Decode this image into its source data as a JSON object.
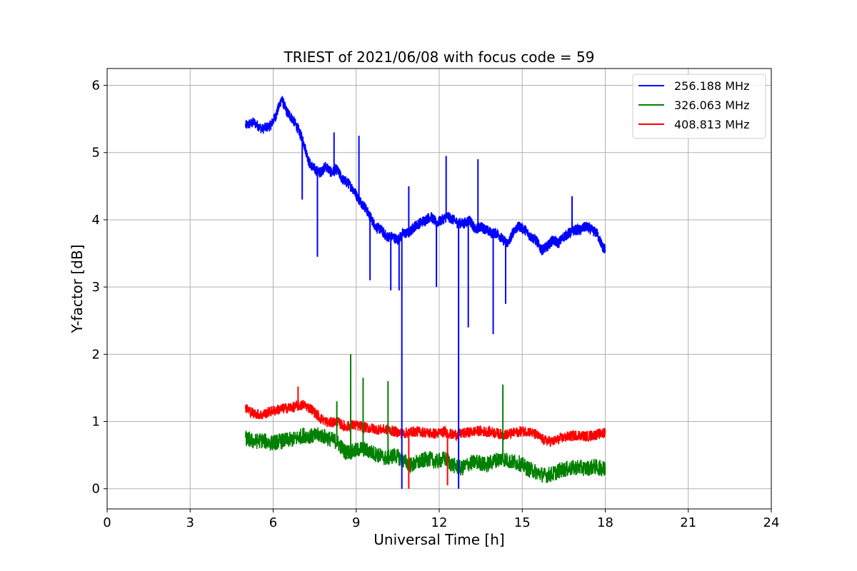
{
  "chart_data": {
    "type": "line",
    "title": "TRIEST of 2021/06/08 with focus code = 59",
    "xlabel": "Universal Time [h]",
    "ylabel": "Y-factor [dB]",
    "xlim": [
      0,
      24
    ],
    "ylim": [
      -0.3,
      6.25
    ],
    "xticks": [
      0,
      3,
      6,
      9,
      12,
      15,
      18,
      21,
      24
    ],
    "yticks": [
      0,
      1,
      2,
      3,
      4,
      5,
      6
    ],
    "grid": true,
    "legend_position": "top-right",
    "series": [
      {
        "name": "256.188 MHz",
        "color": "#0000ff",
        "x": [
          5.0,
          5.3,
          5.6,
          5.9,
          6.1,
          6.3,
          6.5,
          6.7,
          6.9,
          7.1,
          7.3,
          7.5,
          7.7,
          7.9,
          8.1,
          8.3,
          8.5,
          8.7,
          8.9,
          9.1,
          9.3,
          9.5,
          9.7,
          9.9,
          10.1,
          10.3,
          10.5,
          10.7,
          10.9,
          11.1,
          11.3,
          11.5,
          11.7,
          11.9,
          12.1,
          12.3,
          12.5,
          12.7,
          12.9,
          13.1,
          13.3,
          13.5,
          13.7,
          13.9,
          14.1,
          14.3,
          14.5,
          14.7,
          14.9,
          15.1,
          15.3,
          15.5,
          15.7,
          15.9,
          16.1,
          16.3,
          16.5,
          16.7,
          16.9,
          17.1,
          17.3,
          17.5,
          17.7,
          17.9,
          18.0
        ],
        "y": [
          5.4,
          5.45,
          5.35,
          5.4,
          5.55,
          5.8,
          5.6,
          5.5,
          5.35,
          5.15,
          4.85,
          4.75,
          4.7,
          4.8,
          4.7,
          4.75,
          4.6,
          4.55,
          4.45,
          4.3,
          4.2,
          4.05,
          3.9,
          3.85,
          3.75,
          3.75,
          3.7,
          3.8,
          3.8,
          3.9,
          3.95,
          4.0,
          4.05,
          3.95,
          4.0,
          4.05,
          4.0,
          3.95,
          3.95,
          4.0,
          3.85,
          3.9,
          3.85,
          3.8,
          3.8,
          3.7,
          3.65,
          3.85,
          3.9,
          3.85,
          3.75,
          3.7,
          3.55,
          3.6,
          3.7,
          3.65,
          3.75,
          3.8,
          3.85,
          3.85,
          3.9,
          3.85,
          3.8,
          3.6,
          3.55
        ]
      },
      {
        "name": "326.063 MHz",
        "color": "#008000",
        "x": [
          5.0,
          5.3,
          5.6,
          5.9,
          6.2,
          6.5,
          6.8,
          7.1,
          7.4,
          7.7,
          8.0,
          8.3,
          8.6,
          8.9,
          9.2,
          9.5,
          9.8,
          10.1,
          10.4,
          10.7,
          11.0,
          11.3,
          11.6,
          11.9,
          12.2,
          12.5,
          12.8,
          13.1,
          13.4,
          13.7,
          14.0,
          14.3,
          14.6,
          14.9,
          15.2,
          15.5,
          15.8,
          16.1,
          16.4,
          16.7,
          17.0,
          17.3,
          17.6,
          17.9,
          18.0
        ],
        "y": [
          0.75,
          0.7,
          0.72,
          0.68,
          0.7,
          0.72,
          0.74,
          0.8,
          0.78,
          0.8,
          0.75,
          0.7,
          0.55,
          0.55,
          0.6,
          0.55,
          0.5,
          0.45,
          0.5,
          0.42,
          0.35,
          0.4,
          0.45,
          0.4,
          0.45,
          0.35,
          0.3,
          0.38,
          0.4,
          0.35,
          0.42,
          0.45,
          0.4,
          0.38,
          0.3,
          0.25,
          0.2,
          0.22,
          0.28,
          0.3,
          0.32,
          0.3,
          0.33,
          0.3,
          0.32
        ]
      },
      {
        "name": "408.813 MHz",
        "color": "#ff0000",
        "x": [
          5.0,
          5.3,
          5.6,
          5.9,
          6.2,
          6.5,
          6.8,
          7.1,
          7.4,
          7.7,
          8.0,
          8.3,
          8.6,
          8.9,
          9.2,
          9.5,
          9.8,
          10.1,
          10.4,
          10.7,
          11.0,
          11.3,
          11.6,
          11.9,
          12.2,
          12.5,
          12.8,
          13.1,
          13.4,
          13.7,
          14.0,
          14.3,
          14.6,
          14.9,
          15.2,
          15.5,
          15.8,
          16.1,
          16.4,
          16.7,
          17.0,
          17.3,
          17.6,
          17.9,
          18.0
        ],
        "y": [
          1.2,
          1.12,
          1.1,
          1.15,
          1.18,
          1.2,
          1.22,
          1.25,
          1.18,
          1.05,
          0.98,
          1.0,
          0.92,
          0.95,
          0.92,
          0.9,
          0.88,
          0.88,
          0.85,
          0.82,
          0.85,
          0.85,
          0.83,
          0.82,
          0.85,
          0.8,
          0.82,
          0.84,
          0.86,
          0.85,
          0.84,
          0.8,
          0.82,
          0.85,
          0.86,
          0.8,
          0.72,
          0.7,
          0.75,
          0.78,
          0.8,
          0.78,
          0.8,
          0.82,
          0.85
        ]
      }
    ],
    "spikes": [
      {
        "series": 0,
        "x": 7.05,
        "y": 4.3
      },
      {
        "series": 0,
        "x": 7.6,
        "y": 3.45
      },
      {
        "series": 0,
        "x": 8.2,
        "y": 5.3
      },
      {
        "series": 0,
        "x": 9.5,
        "y": 3.1
      },
      {
        "series": 0,
        "x": 9.1,
        "y": 5.25
      },
      {
        "series": 0,
        "x": 10.25,
        "y": 2.95
      },
      {
        "series": 0,
        "x": 10.55,
        "y": 2.95
      },
      {
        "series": 0,
        "x": 10.65,
        "y": 0.0
      },
      {
        "series": 0,
        "x": 10.9,
        "y": 4.5
      },
      {
        "series": 0,
        "x": 11.9,
        "y": 3.0
      },
      {
        "series": 0,
        "x": 12.25,
        "y": 4.95
      },
      {
        "series": 0,
        "x": 12.7,
        "y": 0.0
      },
      {
        "series": 0,
        "x": 13.05,
        "y": 2.4
      },
      {
        "series": 0,
        "x": 13.4,
        "y": 4.9
      },
      {
        "series": 0,
        "x": 13.95,
        "y": 2.3
      },
      {
        "series": 0,
        "x": 14.4,
        "y": 2.75
      },
      {
        "series": 0,
        "x": 16.8,
        "y": 4.35
      },
      {
        "series": 1,
        "x": 8.8,
        "y": 2.0
      },
      {
        "series": 1,
        "x": 9.25,
        "y": 1.65
      },
      {
        "series": 1,
        "x": 10.15,
        "y": 1.6
      },
      {
        "series": 1,
        "x": 14.3,
        "y": 1.55
      },
      {
        "series": 1,
        "x": 8.3,
        "y": 1.3
      },
      {
        "series": 2,
        "x": 10.9,
        "y": 0.0
      },
      {
        "series": 2,
        "x": 12.3,
        "y": 0.05
      },
      {
        "series": 2,
        "x": 6.9,
        "y": 1.52
      }
    ]
  }
}
